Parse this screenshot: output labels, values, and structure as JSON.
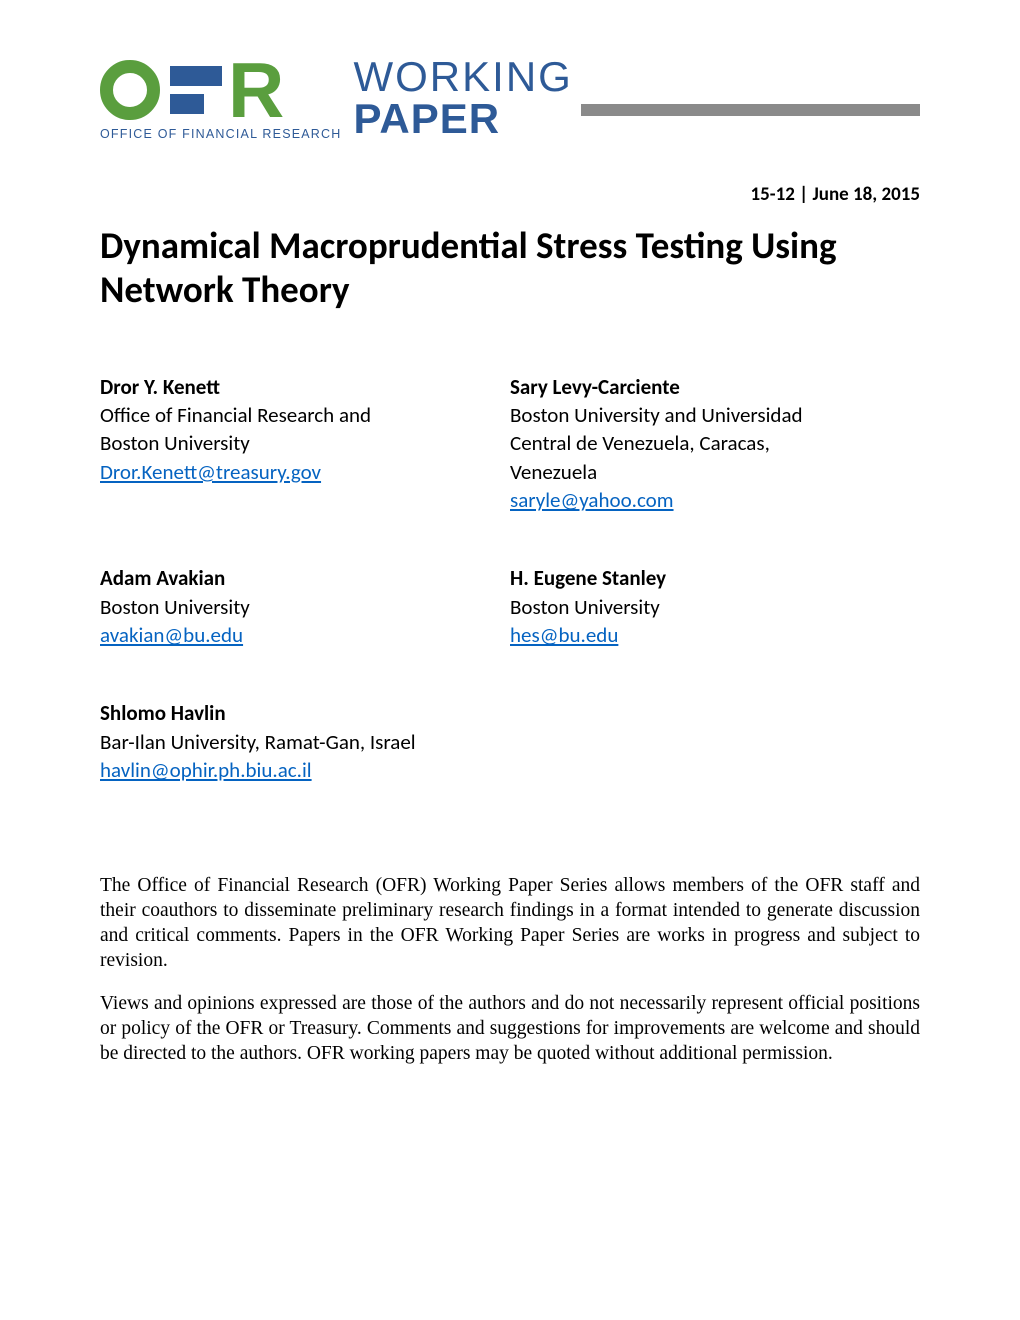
{
  "logo": {
    "subtext": "OFFICE OF FINANCIAL RESEARCH",
    "working": "WORKING",
    "paper": "PAPER",
    "colors": {
      "green": "#5a9e3e",
      "blue": "#2e5a97",
      "gray": "#8a8a8a"
    }
  },
  "dateline": "15-12 | June 18, 2015",
  "title": "Dynamical Macroprudential Stress Testing Using Network Theory",
  "authors": [
    {
      "name": "Dror Y. Kenett",
      "affil": "Office of Financial Research and Boston University",
      "email": "Dror.Kenett@treasury.gov"
    },
    {
      "name": "Sary Levy-Carciente",
      "affil": "Boston University and Universidad Central de Venezuela, Caracas, Venezuela",
      "email": "saryle@yahoo.com"
    },
    {
      "name": "Adam Avakian",
      "affil": "Boston University",
      "email": "avakian@bu.edu"
    },
    {
      "name": "H. Eugene Stanley",
      "affil": "Boston University",
      "email": "hes@bu.edu"
    },
    {
      "name": "Shlomo Havlin",
      "affil": "Bar-Ilan University, Ramat-Gan, Israel",
      "email": "havlin@ophir.ph.biu.ac.il"
    }
  ],
  "disclaimer": {
    "p1": "The Office of Financial Research (OFR) Working Paper Series allows members of the OFR staff and their coauthors to disseminate preliminary research findings in a format intended to generate discussion and critical comments.  Papers in the OFR Working Paper Series are works in progress and subject to revision.",
    "p2": "Views and opinions expressed are those of the authors and do not necessarily represent official positions or policy of the OFR or Treasury. Comments and suggestions for improvements are welcome and should be directed to the authors. OFR working papers may be quoted without additional permission."
  }
}
